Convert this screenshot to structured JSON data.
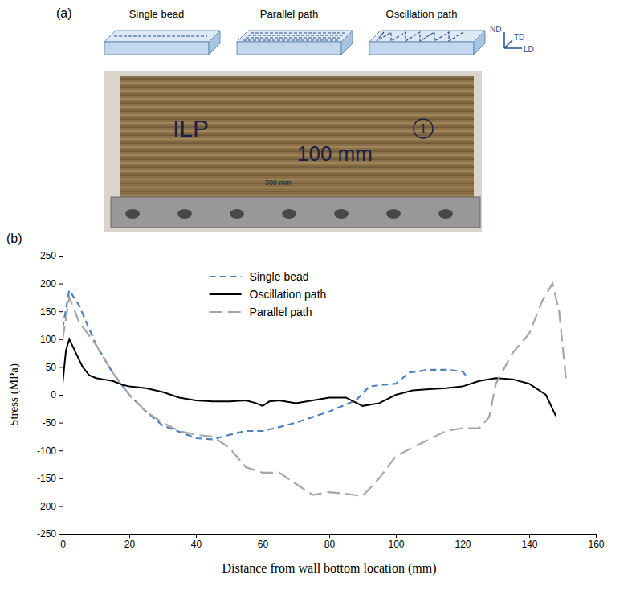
{
  "panel_labels": [
    "(a)",
    "(b)"
  ],
  "schematic": {
    "titles": [
      "Single bead",
      "Parallel path",
      "Oscillation path"
    ],
    "axes": [
      "ND",
      "TD",
      "LD"
    ]
  },
  "photo": {
    "texts": [
      "ILP",
      "100 mm",
      "300 mm",
      "1"
    ]
  },
  "chart_data": {
    "type": "line",
    "x_label": "Distance from wall bottom location (mm)",
    "y_label": "Stress (MPa)",
    "xlim": [
      0,
      160
    ],
    "xticks": [
      0,
      20,
      40,
      60,
      80,
      100,
      120,
      140,
      160
    ],
    "ylim": [
      -250,
      250
    ],
    "yticks": [
      -250,
      -200,
      -150,
      -100,
      -50,
      0,
      50,
      100,
      150,
      200,
      250
    ],
    "grid": false,
    "legend": "upper center",
    "series": [
      {
        "name": "Single bead",
        "color": "#4f81bd",
        "line_style": "dashed",
        "x": [
          0,
          2,
          5,
          10,
          15,
          20,
          25,
          30,
          40,
          45,
          50,
          55,
          60,
          65,
          70,
          80,
          88,
          92,
          96,
          100,
          104,
          110,
          115,
          120,
          121
        ],
        "values": [
          120,
          188,
          160,
          90,
          40,
          0,
          -30,
          -55,
          -78,
          -80,
          -72,
          -65,
          -65,
          -58,
          -50,
          -30,
          -10,
          15,
          18,
          20,
          40,
          45,
          45,
          42,
          35
        ]
      },
      {
        "name": "Oscillation path",
        "color": "#000000",
        "line_style": "solid",
        "x": [
          0,
          1,
          2,
          4,
          6,
          8,
          10,
          12,
          15,
          18,
          20,
          25,
          30,
          35,
          40,
          45,
          50,
          55,
          58,
          60,
          62,
          65,
          70,
          75,
          80,
          85,
          90,
          95,
          100,
          105,
          110,
          115,
          120,
          125,
          130,
          135,
          140,
          145,
          148
        ],
        "values": [
          20,
          80,
          100,
          75,
          50,
          35,
          30,
          28,
          25,
          18,
          15,
          12,
          5,
          -5,
          -10,
          -12,
          -12,
          -10,
          -15,
          -20,
          -12,
          -10,
          -15,
          -10,
          -5,
          -5,
          -20,
          -15,
          0,
          8,
          10,
          12,
          15,
          25,
          30,
          28,
          20,
          0,
          -38
        ]
      },
      {
        "name": "Parallel path",
        "color": "#a6a6a6",
        "line_style": "long-dash",
        "x": [
          0,
          2,
          5,
          10,
          15,
          20,
          25,
          30,
          35,
          40,
          45,
          50,
          55,
          60,
          65,
          70,
          75,
          80,
          85,
          90,
          95,
          100,
          105,
          110,
          115,
          120,
          125,
          128,
          130,
          135,
          140,
          144,
          147,
          149,
          151
        ],
        "values": [
          100,
          175,
          130,
          90,
          40,
          0,
          -30,
          -50,
          -65,
          -72,
          -75,
          -95,
          -130,
          -140,
          -140,
          -160,
          -180,
          -175,
          -178,
          -182,
          -150,
          -110,
          -95,
          -80,
          -65,
          -60,
          -60,
          -40,
          20,
          75,
          110,
          170,
          200,
          150,
          30
        ]
      }
    ]
  }
}
